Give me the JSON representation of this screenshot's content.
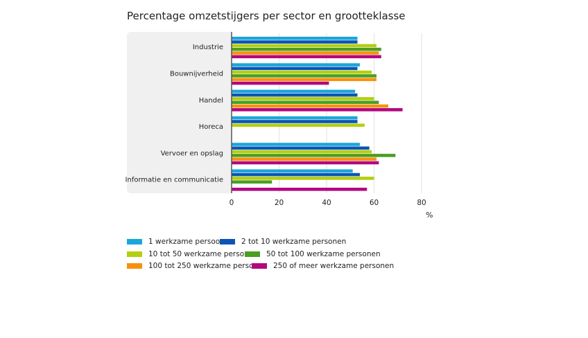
{
  "chart_data": {
    "type": "bar",
    "orientation": "horizontal",
    "title": "Percentage omzetstijgers per sector en grootteklasse",
    "xlabel": "%",
    "xlim": [
      0,
      80
    ],
    "xticks": [
      "0",
      "20",
      "40",
      "60",
      "80"
    ],
    "grid": true,
    "legend_position": "bottom",
    "categories": [
      "Industrie",
      "Bouwnijverheid",
      "Handel",
      "Horeca",
      "Vervoer en opslag",
      "Informatie en communicatie"
    ],
    "series": [
      {
        "name": "1 werkzame persoon",
        "color": "#1ba6d9",
        "values": [
          53,
          54,
          52,
          53,
          54,
          51
        ]
      },
      {
        "name": "2 tot 10 werkzame personen",
        "color": "#0b55b5",
        "values": [
          53,
          53,
          53,
          53,
          58,
          54
        ]
      },
      {
        "name": "10 tot 50 werkzame personen",
        "color": "#b3cf0f",
        "values": [
          61,
          59,
          60,
          56,
          59,
          60
        ]
      },
      {
        "name": "50 tot 100 werkzame personen",
        "color": "#4a9e22",
        "values": [
          63,
          61,
          62,
          null,
          69,
          17
        ]
      },
      {
        "name": "100 tot 250 werkzame personen",
        "color": "#f7910d",
        "values": [
          62,
          61,
          66,
          null,
          61,
          null
        ]
      },
      {
        "name": "250 of meer werkzame personen",
        "color": "#b3087e",
        "values": [
          63,
          41,
          72,
          null,
          62,
          57
        ]
      }
    ]
  }
}
